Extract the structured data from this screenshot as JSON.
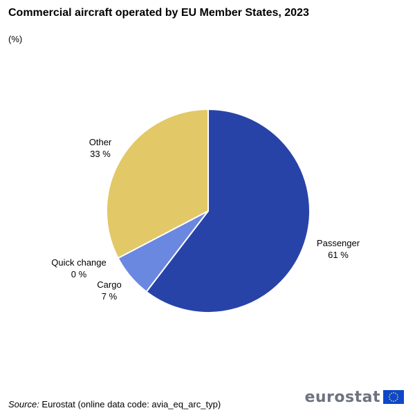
{
  "chart_data": {
    "type": "pie",
    "title": "Commercial aircraft operated by EU Member States, 2023",
    "subtitle": "(%)",
    "slices": [
      {
        "label": "Passenger",
        "value": 61,
        "value_label": "61 %",
        "color": "#2843a8"
      },
      {
        "label": "Cargo",
        "value": 7,
        "value_label": "7 %",
        "color": "#6b88e0"
      },
      {
        "label": "Quick change",
        "value": 0,
        "value_label": "0 %",
        "color": "#b9c9f2"
      },
      {
        "label": "Other",
        "value": 33,
        "value_label": "33 %",
        "color": "#e2c867"
      }
    ]
  },
  "footer": {
    "source_label": "Source:",
    "source_text": " Eurostat (online data code: avia_eq_arc_typ)"
  },
  "logo": {
    "text": "eurostat",
    "flag_color": "#0e47cb",
    "star_color": "#ffde00"
  }
}
